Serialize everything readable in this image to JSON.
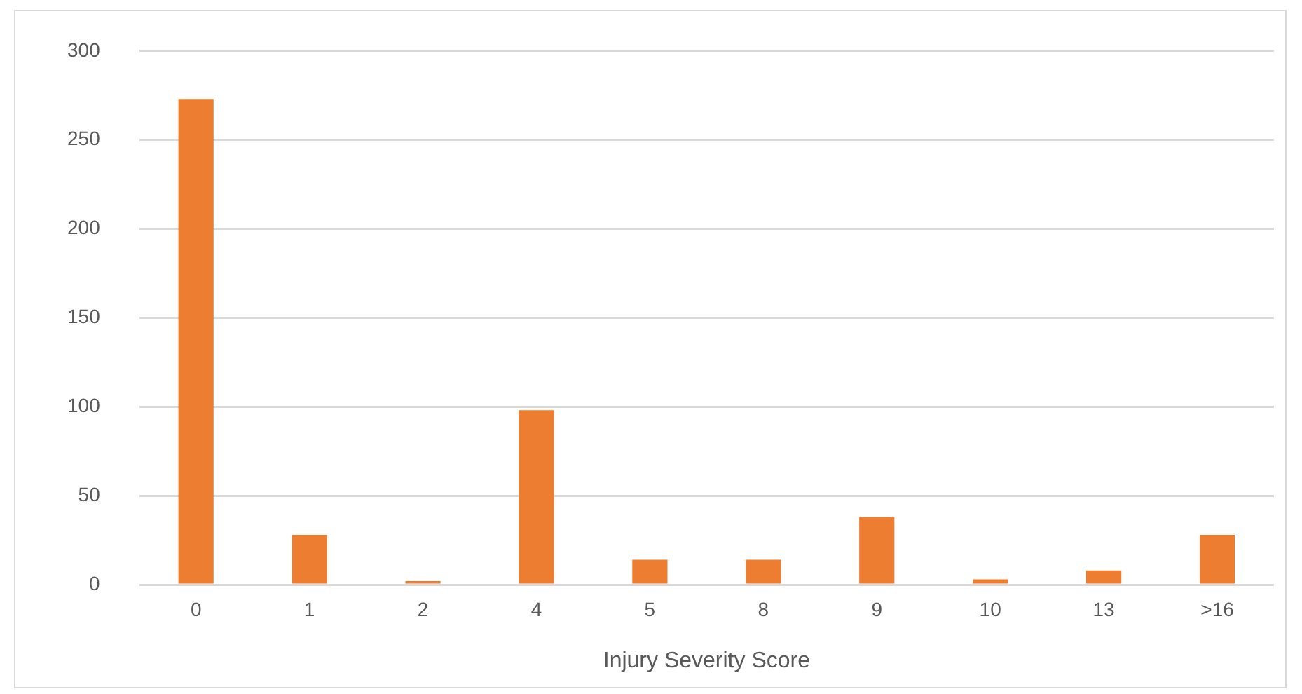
{
  "chart_data": {
    "type": "bar",
    "xlabel": "Injury Severity Score",
    "categories": [
      "0",
      "1",
      "2",
      "4",
      "5",
      "8",
      "9",
      "10",
      "13",
      ">16"
    ],
    "values": [
      273,
      28,
      2,
      98,
      14,
      14,
      38,
      3,
      8,
      28
    ],
    "color": "#ed7d31",
    "ylim": [
      0,
      300
    ],
    "yticks": [
      0,
      50,
      100,
      150,
      200,
      250,
      300
    ],
    "grid": "y",
    "legend": false
  }
}
